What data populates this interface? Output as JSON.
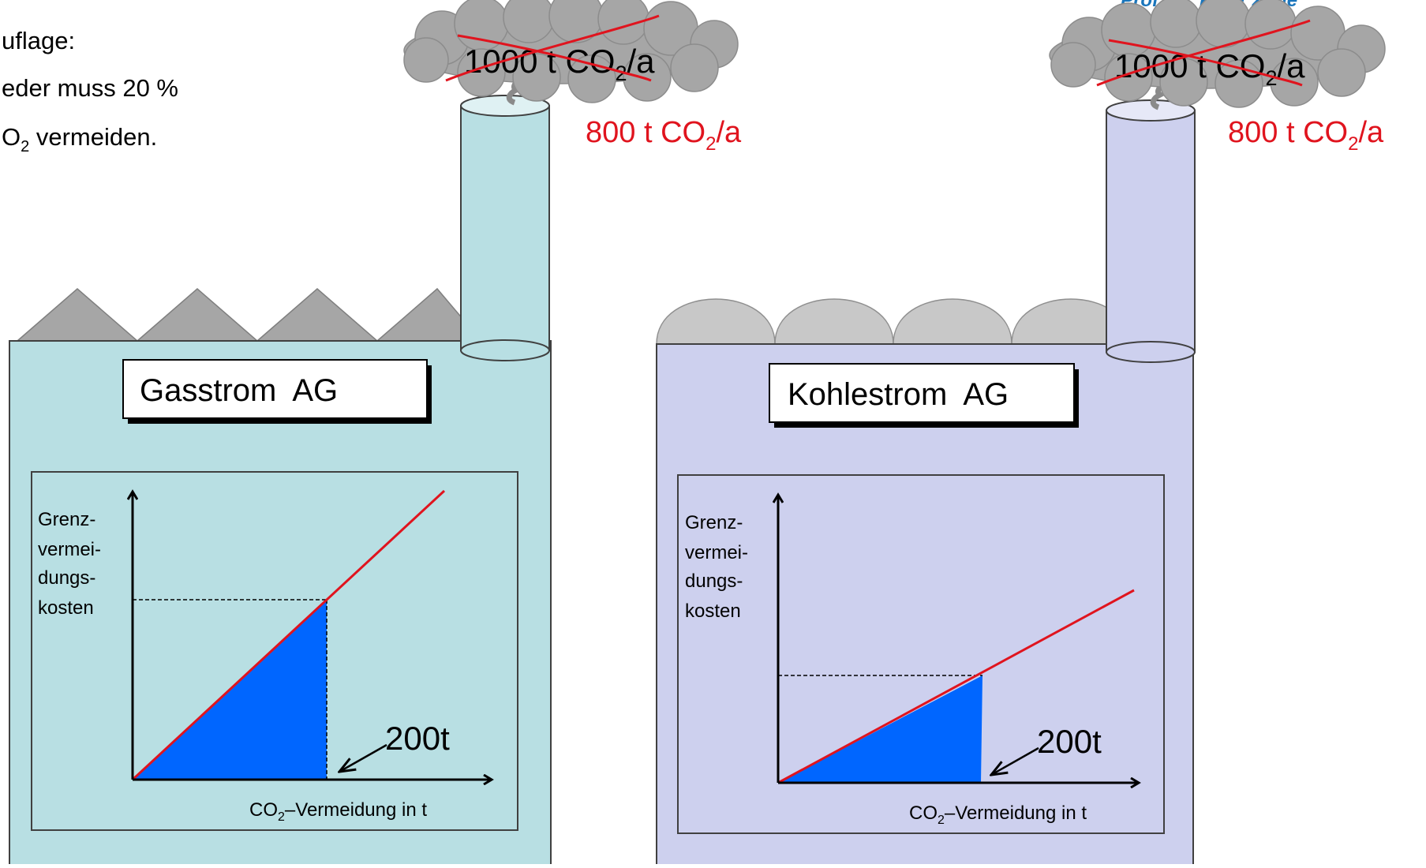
{
  "header": {
    "author": "Prof. Dr. Peter Zerle"
  },
  "intro": {
    "line1": "uflage:",
    "line2": "eder muss 20 %",
    "line3_prefix": "O",
    "line3_sub": "2",
    "line3_suffix": " vermeiden."
  },
  "colors": {
    "gas_fill": "#b8dfe3",
    "coal_fill": "#cdd0ee",
    "curve_red": "#e0141e",
    "area_blue": "#0066ff",
    "cloud_gray": "#a6a6a6"
  },
  "factories": [
    {
      "name": "Gasstrom  AG",
      "old_emission": {
        "prefix": "1000 t CO",
        "sub": "2",
        "suffix": "/a"
      },
      "new_emission": {
        "prefix": "800 t CO",
        "sub": "2",
        "suffix": "/a"
      },
      "chart": {
        "ylabel": [
          "Grenz-",
          "vermei-",
          "dungs-",
          "kosten"
        ],
        "xlabel_prefix": "CO",
        "xlabel_sub": "2",
        "xlabel_suffix": "–Vermeidung in t",
        "annotation": "200t"
      }
    },
    {
      "name": "Kohlestrom  AG",
      "old_emission": {
        "prefix": "1000 t CO",
        "sub": "2",
        "suffix": "/a"
      },
      "new_emission": {
        "prefix": "800 t CO",
        "sub": "2",
        "suffix": "/a"
      },
      "chart": {
        "ylabel": [
          "Grenz-",
          "vermei-",
          "dungs-",
          "kosten"
        ],
        "xlabel_prefix": "CO",
        "xlabel_sub": "2",
        "xlabel_suffix": "–Vermeidung in t",
        "annotation": "200t"
      }
    }
  ]
}
